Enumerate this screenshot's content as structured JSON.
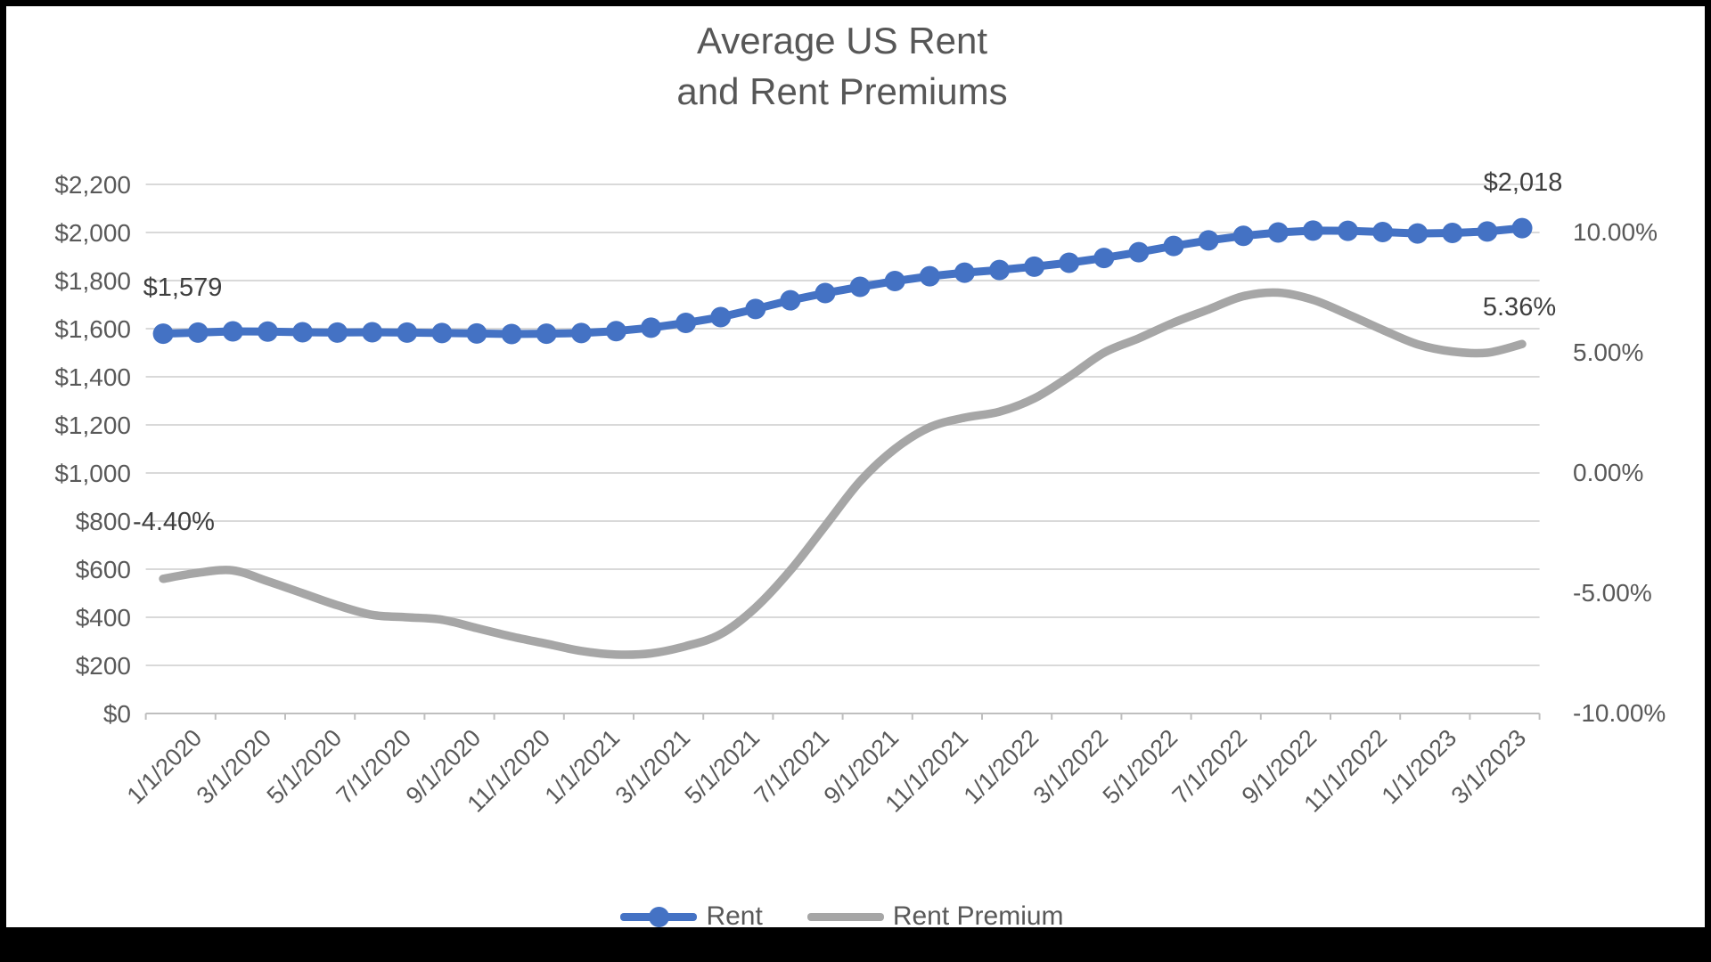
{
  "title": {
    "line1": "Average US Rent",
    "line2": "and Rent Premiums"
  },
  "legend": [
    {
      "name": "Rent",
      "color": "#4472C4",
      "marker": "circle"
    },
    {
      "name": "Rent Premium",
      "color": "#A6A6A6",
      "marker": "none"
    }
  ],
  "colors": {
    "rent_line": "#4472C4",
    "premium_line": "#A6A6A6",
    "gridline": "#D9D9D9",
    "axis_line": "#BFBFBF",
    "axis_text": "#595959",
    "annotation_text": "#3f3f3f",
    "title_text": "#575757",
    "frame": "#000000"
  },
  "chart_data": {
    "type": "line",
    "title": "Average US Rent and Rent Premiums",
    "x": [
      "1/1/2020",
      "2/1/2020",
      "3/1/2020",
      "4/1/2020",
      "5/1/2020",
      "6/1/2020",
      "7/1/2020",
      "8/1/2020",
      "9/1/2020",
      "10/1/2020",
      "11/1/2020",
      "12/1/2020",
      "1/1/2021",
      "2/1/2021",
      "3/1/2021",
      "4/1/2021",
      "5/1/2021",
      "6/1/2021",
      "7/1/2021",
      "8/1/2021",
      "9/1/2021",
      "10/1/2021",
      "11/1/2021",
      "12/1/2021",
      "1/1/2022",
      "2/1/2022",
      "3/1/2022",
      "4/1/2022",
      "5/1/2022",
      "6/1/2022",
      "7/1/2022",
      "8/1/2022",
      "9/1/2022",
      "10/1/2022",
      "11/1/2022",
      "12/1/2022",
      "1/1/2023",
      "2/1/2023",
      "3/1/2023",
      "4/1/2023"
    ],
    "x_tick_labels": [
      "1/1/2020",
      "3/1/2020",
      "5/1/2020",
      "7/1/2020",
      "9/1/2020",
      "11/1/2020",
      "1/1/2021",
      "3/1/2021",
      "5/1/2021",
      "7/1/2021",
      "9/1/2021",
      "11/1/2021",
      "1/1/2022",
      "3/1/2022",
      "5/1/2022",
      "7/1/2022",
      "9/1/2022",
      "11/1/2022",
      "1/1/2023",
      "3/1/2023"
    ],
    "series": [
      {
        "name": "Rent",
        "axis": "left",
        "color": "#4472C4",
        "marker": "circle",
        "values": [
          1579,
          1584,
          1589,
          1588,
          1585,
          1584,
          1585,
          1584,
          1582,
          1580,
          1578,
          1579,
          1582,
          1590,
          1604,
          1624,
          1648,
          1682,
          1718,
          1748,
          1774,
          1798,
          1818,
          1833,
          1844,
          1858,
          1874,
          1894,
          1918,
          1944,
          1967,
          1986,
          2000,
          2008,
          2007,
          2002,
          1996,
          1998,
          2004,
          2018
        ]
      },
      {
        "name": "Rent Premium",
        "axis": "right",
        "color": "#A6A6A6",
        "marker": "none",
        "smoothed": true,
        "values": [
          -4.4,
          -4.15,
          -4.05,
          -4.5,
          -5.0,
          -5.5,
          -5.9,
          -6.0,
          -6.1,
          -6.45,
          -6.8,
          -7.1,
          -7.4,
          -7.55,
          -7.5,
          -7.2,
          -6.7,
          -5.6,
          -4.05,
          -2.2,
          -0.35,
          1.0,
          1.9,
          2.3,
          2.55,
          3.1,
          4.0,
          5.0,
          5.6,
          6.25,
          6.8,
          7.35,
          7.5,
          7.2,
          6.6,
          5.95,
          5.35,
          5.05,
          5.0,
          5.36
        ]
      }
    ],
    "left_axis": {
      "min": 0,
      "max": 2200,
      "step": 200,
      "format": "currency",
      "tick_labels": [
        "$0",
        "$200",
        "$400",
        "$600",
        "$800",
        "$1,000",
        "$1,200",
        "$1,400",
        "$1,600",
        "$1,800",
        "$2,000",
        "$2,200"
      ]
    },
    "right_axis": {
      "min": -10,
      "max": 12,
      "step": 5,
      "format": "percent",
      "label_values": [
        10,
        5,
        0,
        -5,
        -10
      ],
      "tick_labels": [
        "10.00%",
        "5.00%",
        "0.00%",
        "-5.00%",
        "-10.00%"
      ]
    },
    "grid": "horizontal-only",
    "legend_position": "bottom",
    "annotations": {
      "rent_first": {
        "text": "$1,579",
        "series": "Rent",
        "point": "1/1/2020"
      },
      "rent_last": {
        "text": "$2,018",
        "series": "Rent",
        "point": "4/1/2023"
      },
      "premium_first": {
        "text": "-4.40%",
        "series": "Rent Premium",
        "point": "1/1/2020"
      },
      "premium_last": {
        "text": "5.36%",
        "series": "Rent Premium",
        "point": "4/1/2023"
      }
    }
  }
}
